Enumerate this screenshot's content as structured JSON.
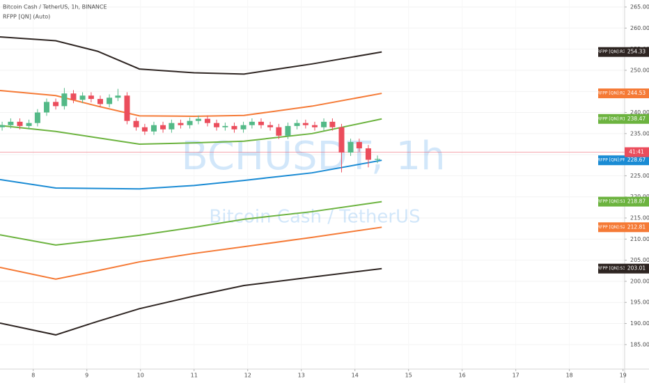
{
  "chart_data": {
    "type": "candlestick",
    "title": "Bitcoin Cash / TetherUS, 1h, BINANCE",
    "indicator": "RFPP [QN] (Auto)",
    "watermark": "BCHUSDT, 1h",
    "watermark_subtitle": "Bitcoin Cash / TetherUS",
    "up_color": "#53b987",
    "down_color": "#eb4d5c",
    "candles": {
      "x": [
        7.42,
        7.58,
        7.75,
        7.92,
        8.08,
        8.25,
        8.42,
        8.58,
        8.75,
        8.92,
        9.08,
        9.25,
        9.42,
        9.58,
        9.75,
        9.92,
        10.08,
        10.25,
        10.42,
        10.58,
        10.75,
        10.92,
        11.08,
        11.25,
        11.42,
        11.58,
        11.75,
        11.92,
        12.08,
        12.25,
        12.42,
        12.58,
        12.75,
        12.92,
        13.08,
        13.25,
        13.42,
        13.58,
        13.75,
        13.92,
        14.08,
        14.25,
        14.42
      ],
      "open": [
        236.5,
        237.0,
        237.8,
        236.8,
        237.5,
        240.0,
        242.5,
        241.5,
        244.5,
        243.0,
        244.0,
        243.2,
        242.0,
        243.5,
        244.0,
        238.0,
        236.5,
        235.5,
        237.0,
        236.0,
        237.5,
        237.0,
        238.0,
        238.5,
        237.5,
        236.5,
        236.8,
        236.0,
        237.0,
        237.8,
        237.0,
        236.5,
        234.5,
        236.8,
        237.5,
        237.0,
        236.5,
        237.8,
        236.5,
        230.5,
        233.0,
        231.5,
        228.8
      ],
      "close": [
        237.0,
        237.8,
        236.8,
        237.5,
        240.0,
        242.5,
        241.5,
        244.5,
        243.0,
        244.0,
        243.2,
        242.0,
        243.5,
        244.0,
        238.0,
        236.5,
        235.5,
        237.0,
        236.0,
        237.5,
        237.0,
        238.0,
        238.5,
        237.5,
        236.5,
        236.8,
        236.0,
        237.0,
        237.8,
        237.0,
        236.5,
        234.5,
        236.8,
        237.5,
        237.0,
        236.5,
        237.8,
        236.5,
        230.5,
        233.0,
        231.5,
        228.8,
        229.0
      ],
      "high": [
        237.8,
        238.6,
        238.6,
        238.3,
        240.8,
        243.3,
        243.3,
        245.8,
        245.3,
        244.8,
        244.8,
        244.0,
        244.3,
        245.6,
        244.8,
        238.8,
        237.3,
        237.8,
        237.8,
        238.3,
        238.3,
        238.8,
        239.3,
        239.3,
        238.3,
        237.6,
        237.6,
        237.8,
        238.6,
        238.6,
        237.8,
        237.3,
        237.6,
        238.3,
        238.3,
        237.8,
        238.6,
        238.6,
        237.3,
        233.8,
        233.8,
        232.3,
        229.8
      ],
      "low": [
        235.7,
        236.2,
        236.0,
        236.0,
        236.7,
        239.2,
        240.7,
        240.7,
        242.2,
        242.2,
        242.4,
        241.2,
        241.2,
        242.7,
        237.2,
        235.7,
        234.7,
        234.7,
        235.2,
        235.2,
        236.2,
        236.2,
        237.2,
        236.7,
        235.7,
        235.7,
        235.2,
        235.2,
        236.2,
        236.2,
        235.7,
        233.7,
        233.7,
        236.0,
        236.2,
        235.7,
        235.7,
        235.7,
        225.8,
        229.7,
        230.7,
        227.0,
        228.0
      ]
    },
    "level_x": [
      7.38,
      8.42,
      9.2,
      9.98,
      11.0,
      11.93,
      13.2,
      14.5
    ],
    "series": [
      {
        "name": "RFPP [QN]:R3",
        "color": "#2e2522",
        "values": [
          257.9,
          257.0,
          254.5,
          250.3,
          249.4,
          249.1,
          251.5,
          254.33
        ]
      },
      {
        "name": "RFPP [QN]:R2",
        "color": "#f57a36",
        "values": [
          245.2,
          244.0,
          241.5,
          239.2,
          239.1,
          239.3,
          241.5,
          244.53
        ]
      },
      {
        "name": "RFPP [QN]:R1",
        "color": "#6cb33f",
        "values": [
          236.9,
          235.5,
          234.0,
          232.5,
          232.8,
          233.2,
          235.0,
          238.47
        ]
      },
      {
        "name": "RFPP [QN]:PP",
        "color": "#1a8bd4",
        "values": [
          224.1,
          222.1,
          222.0,
          221.9,
          222.7,
          223.9,
          225.7,
          228.67
        ]
      },
      {
        "name": "RFPP [QN]:S1",
        "color": "#6cb33f",
        "values": [
          211.0,
          208.6,
          209.7,
          210.9,
          212.8,
          214.7,
          216.5,
          218.87
        ]
      },
      {
        "name": "RFPP [QN]:S2",
        "color": "#f57a36",
        "values": [
          203.3,
          200.5,
          202.5,
          204.6,
          206.6,
          208.2,
          210.4,
          212.81
        ]
      },
      {
        "name": "RFPP [QN]:S3",
        "color": "#2e2522",
        "values": [
          190.1,
          187.3,
          190.5,
          193.5,
          196.5,
          199.0,
          201.0,
          203.01
        ]
      }
    ],
    "current_price": 230.6,
    "countdown": "41:41",
    "xlim": [
      7.38,
      19.03
    ],
    "xticks": [
      8,
      9,
      10,
      11,
      12,
      13,
      14,
      15,
      16,
      17,
      18,
      19
    ],
    "ylim": [
      179.2,
      266.65
    ],
    "yticks": [
      {
        "value": 185,
        "label": "185.00"
      },
      {
        "value": 190,
        "label": "190.00"
      },
      {
        "value": 195,
        "label": "195.00"
      },
      {
        "value": 200,
        "label": "200.00"
      },
      {
        "value": 205,
        "label": "205.00"
      },
      {
        "value": 210,
        "label": "210.00"
      },
      {
        "value": 215,
        "label": "215.00"
      },
      {
        "value": 220,
        "label": "220.00"
      },
      {
        "value": 225,
        "label": "225.00"
      },
      {
        "value": 230,
        "label": "230.00"
      },
      {
        "value": 235,
        "label": "235.00"
      },
      {
        "value": 240,
        "label": "240.00"
      },
      {
        "value": 245,
        "label": "245.00"
      },
      {
        "value": 250,
        "label": "250.00"
      },
      {
        "value": 255,
        "label": "255.00"
      },
      {
        "value": 260,
        "label": "260.00"
      },
      {
        "value": 265,
        "label": "265.00"
      }
    ],
    "grid": true
  }
}
